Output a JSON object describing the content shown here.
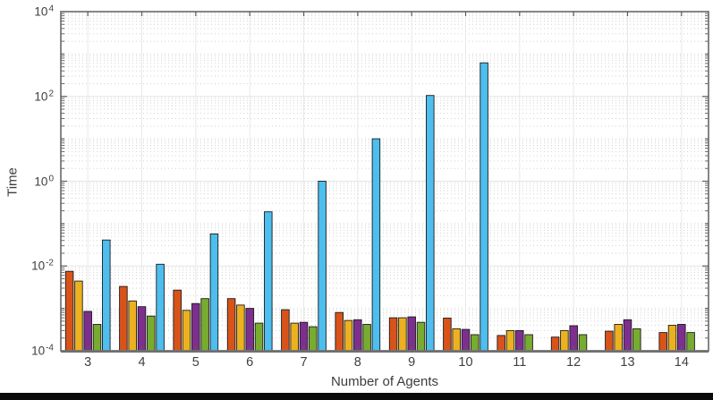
{
  "figure": {
    "xlabel": "Number of Agents",
    "ylabel": "Time"
  },
  "chart_data": {
    "type": "bar",
    "title": "",
    "xlabel": "Number of Agents",
    "ylabel": "Time",
    "yscale": "log",
    "ylim": [
      0.0001,
      10000
    ],
    "ytick_exponents": [
      4,
      2,
      0,
      -2,
      -4
    ],
    "categories": [
      3,
      4,
      5,
      6,
      7,
      8,
      9,
      10,
      11,
      12,
      13,
      14
    ],
    "grid": true,
    "minor_grid": "dotted",
    "legend_position": "none",
    "frame_color": "#787878",
    "major_grid_color": "#e3e3e3",
    "minor_grid_color": "#d2d2d2",
    "bar_edge_color": "#1a1a1a",
    "series": [
      {
        "name": "series-1-orange-red",
        "color": "#D95319",
        "values": [
          0.0075,
          0.0033,
          0.0027,
          0.0017,
          0.00093,
          0.0008,
          0.0006,
          0.00059,
          0.00023,
          0.00021,
          0.00029,
          0.00027
        ]
      },
      {
        "name": "series-2-yellow",
        "color": "#EDB120",
        "values": [
          0.0044,
          0.0015,
          0.0009,
          0.0012,
          0.00045,
          0.00052,
          0.0006,
          0.00033,
          0.0003,
          0.0003,
          0.00042,
          0.0004
        ]
      },
      {
        "name": "series-3-purple",
        "color": "#7E2F8E",
        "values": [
          0.00085,
          0.0011,
          0.0013,
          0.001,
          0.00047,
          0.00054,
          0.00063,
          0.00032,
          0.0003,
          0.00039,
          0.00054,
          0.00042
        ]
      },
      {
        "name": "series-4-green",
        "color": "#77AC30",
        "values": [
          0.00042,
          0.00066,
          0.0017,
          0.00045,
          0.00037,
          0.00042,
          0.00047,
          0.00024,
          0.00024,
          0.00024,
          0.00033,
          0.00027
        ]
      },
      {
        "name": "series-5-light-blue",
        "color": "#4DBEEE",
        "values": [
          0.041,
          0.011,
          0.057,
          0.19,
          1.0,
          10.0,
          105.0,
          620.0,
          null,
          null,
          null,
          null
        ]
      }
    ]
  }
}
